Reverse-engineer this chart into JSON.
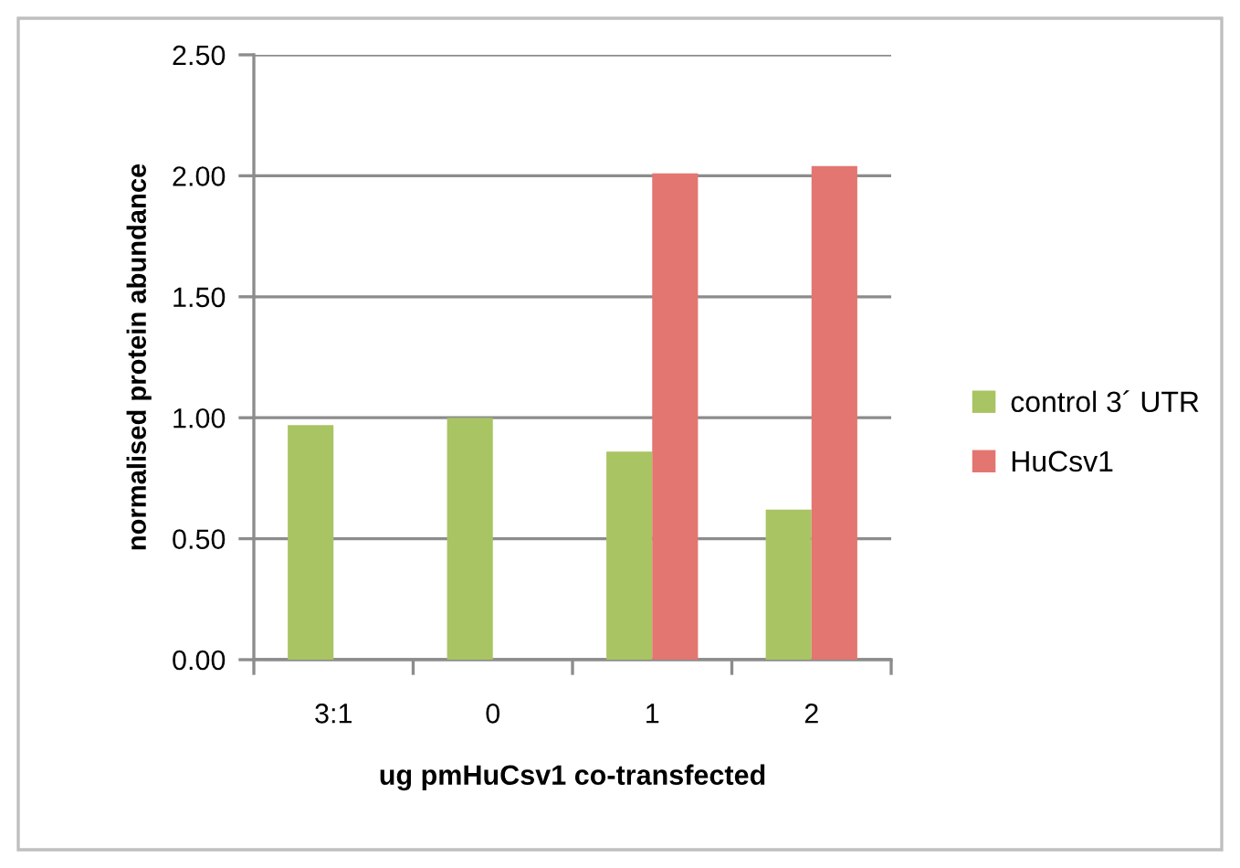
{
  "chart_data": {
    "type": "bar",
    "xlabel": "ug pmHuCsv1 co-transfected",
    "ylabel": "normalised protein abundance",
    "categories": [
      "3:1",
      "0",
      "1",
      "2"
    ],
    "series": [
      {
        "name": "control 3´ UTR",
        "color": "#a9c463",
        "values": [
          0.97,
          1.0,
          0.86,
          0.62
        ]
      },
      {
        "name": "HuCsv1",
        "color": "#e37670",
        "values": [
          null,
          null,
          2.01,
          2.04
        ]
      }
    ],
    "ylim": [
      0,
      2.5
    ],
    "yticks": [
      {
        "value": 0,
        "label": "0.00"
      },
      {
        "value": 0.5,
        "label": "0.50"
      },
      {
        "value": 1.0,
        "label": "1.00"
      },
      {
        "value": 1.5,
        "label": "1.50"
      },
      {
        "value": 2.0,
        "label": "2.00"
      },
      {
        "value": 2.5,
        "label": "2.50"
      }
    ],
    "grid": "y",
    "legend": "right"
  }
}
